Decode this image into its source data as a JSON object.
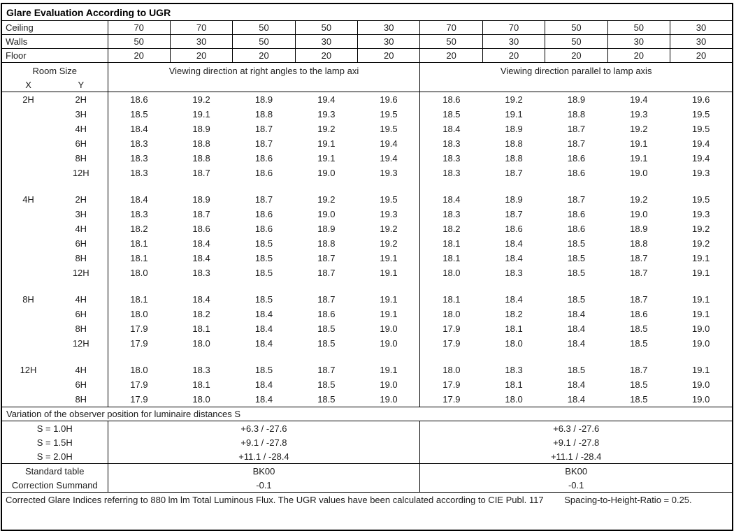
{
  "title": "Glare Evaluation According to UGR",
  "surface_rows": [
    {
      "label": "Ceiling",
      "values": [
        "70",
        "70",
        "50",
        "50",
        "30",
        "70",
        "70",
        "50",
        "50",
        "30"
      ]
    },
    {
      "label": "Walls",
      "values": [
        "50",
        "30",
        "50",
        "30",
        "30",
        "50",
        "30",
        "50",
        "30",
        "30"
      ]
    },
    {
      "label": "Floor",
      "values": [
        "20",
        "20",
        "20",
        "20",
        "20",
        "20",
        "20",
        "20",
        "20",
        "20"
      ]
    }
  ],
  "header": {
    "room_size": "Room Size",
    "x": "X",
    "y": "Y",
    "left_heading": "Viewing direction at right angles to the lamp axi",
    "right_heading": "Viewing direction parallel to lamp axis"
  },
  "data_rows": [
    {
      "x": "2H",
      "y": "2H",
      "left": [
        "18.6",
        "19.2",
        "18.9",
        "19.4",
        "19.6"
      ],
      "right": [
        "18.6",
        "19.2",
        "18.9",
        "19.4",
        "19.6"
      ]
    },
    {
      "x": "",
      "y": "3H",
      "left": [
        "18.5",
        "19.1",
        "18.8",
        "19.3",
        "19.5"
      ],
      "right": [
        "18.5",
        "19.1",
        "18.8",
        "19.3",
        "19.5"
      ]
    },
    {
      "x": "",
      "y": "4H",
      "left": [
        "18.4",
        "18.9",
        "18.7",
        "19.2",
        "19.5"
      ],
      "right": [
        "18.4",
        "18.9",
        "18.7",
        "19.2",
        "19.5"
      ]
    },
    {
      "x": "",
      "y": "6H",
      "left": [
        "18.3",
        "18.8",
        "18.7",
        "19.1",
        "19.4"
      ],
      "right": [
        "18.3",
        "18.8",
        "18.7",
        "19.1",
        "19.4"
      ]
    },
    {
      "x": "",
      "y": "8H",
      "left": [
        "18.3",
        "18.8",
        "18.6",
        "19.1",
        "19.4"
      ],
      "right": [
        "18.3",
        "18.8",
        "18.6",
        "19.1",
        "19.4"
      ]
    },
    {
      "x": "",
      "y": "12H",
      "left": [
        "18.3",
        "18.7",
        "18.6",
        "19.0",
        "19.3"
      ],
      "right": [
        "18.3",
        "18.7",
        "18.6",
        "19.0",
        "19.3"
      ]
    },
    {
      "blank": true
    },
    {
      "x": "4H",
      "y": "2H",
      "left": [
        "18.4",
        "18.9",
        "18.7",
        "19.2",
        "19.5"
      ],
      "right": [
        "18.4",
        "18.9",
        "18.7",
        "19.2",
        "19.5"
      ]
    },
    {
      "x": "",
      "y": "3H",
      "left": [
        "18.3",
        "18.7",
        "18.6",
        "19.0",
        "19.3"
      ],
      "right": [
        "18.3",
        "18.7",
        "18.6",
        "19.0",
        "19.3"
      ]
    },
    {
      "x": "",
      "y": "4H",
      "left": [
        "18.2",
        "18.6",
        "18.6",
        "18.9",
        "19.2"
      ],
      "right": [
        "18.2",
        "18.6",
        "18.6",
        "18.9",
        "19.2"
      ]
    },
    {
      "x": "",
      "y": "6H",
      "left": [
        "18.1",
        "18.4",
        "18.5",
        "18.8",
        "19.2"
      ],
      "right": [
        "18.1",
        "18.4",
        "18.5",
        "18.8",
        "19.2"
      ]
    },
    {
      "x": "",
      "y": "8H",
      "left": [
        "18.1",
        "18.4",
        "18.5",
        "18.7",
        "19.1"
      ],
      "right": [
        "18.1",
        "18.4",
        "18.5",
        "18.7",
        "19.1"
      ]
    },
    {
      "x": "",
      "y": "12H",
      "left": [
        "18.0",
        "18.3",
        "18.5",
        "18.7",
        "19.1"
      ],
      "right": [
        "18.0",
        "18.3",
        "18.5",
        "18.7",
        "19.1"
      ]
    },
    {
      "blank": true
    },
    {
      "x": "8H",
      "y": "4H",
      "left": [
        "18.1",
        "18.4",
        "18.5",
        "18.7",
        "19.1"
      ],
      "right": [
        "18.1",
        "18.4",
        "18.5",
        "18.7",
        "19.1"
      ]
    },
    {
      "x": "",
      "y": "6H",
      "left": [
        "18.0",
        "18.2",
        "18.4",
        "18.6",
        "19.1"
      ],
      "right": [
        "18.0",
        "18.2",
        "18.4",
        "18.6",
        "19.1"
      ]
    },
    {
      "x": "",
      "y": "8H",
      "left": [
        "17.9",
        "18.1",
        "18.4",
        "18.5",
        "19.0"
      ],
      "right": [
        "17.9",
        "18.1",
        "18.4",
        "18.5",
        "19.0"
      ]
    },
    {
      "x": "",
      "y": "12H",
      "left": [
        "17.9",
        "18.0",
        "18.4",
        "18.5",
        "19.0"
      ],
      "right": [
        "17.9",
        "18.0",
        "18.4",
        "18.5",
        "19.0"
      ]
    },
    {
      "blank": true
    },
    {
      "x": "12H",
      "y": "4H",
      "left": [
        "18.0",
        "18.3",
        "18.5",
        "18.7",
        "19.1"
      ],
      "right": [
        "18.0",
        "18.3",
        "18.5",
        "18.7",
        "19.1"
      ]
    },
    {
      "x": "",
      "y": "6H",
      "left": [
        "17.9",
        "18.1",
        "18.4",
        "18.5",
        "19.0"
      ],
      "right": [
        "17.9",
        "18.1",
        "18.4",
        "18.5",
        "19.0"
      ]
    },
    {
      "x": "",
      "y": "8H",
      "left": [
        "17.9",
        "18.0",
        "18.4",
        "18.5",
        "19.0"
      ],
      "right": [
        "17.9",
        "18.0",
        "18.4",
        "18.5",
        "19.0"
      ]
    }
  ],
  "variation_heading": "Variation of the observer position for luminaire distances S",
  "variation_rows": [
    {
      "label": "S = 1.0H",
      "left": "+6.3 / -27.6",
      "right": "+6.3 / -27.6"
    },
    {
      "label": "S = 1.5H",
      "left": "+9.1 / -27.8",
      "right": "+9.1 / -27.8"
    },
    {
      "label": "S = 2.0H",
      "left": "+11.1 / -28.4",
      "right": "+11.1 / -28.4"
    }
  ],
  "summary_rows": [
    {
      "label": "Standard table",
      "left": "BK00",
      "right": "BK00"
    },
    {
      "label": "Correction Summand",
      "left": "-0.1",
      "right": "-0.1"
    }
  ],
  "footer": {
    "note": "Corrected Glare Indices referring to 880 lm lm Total Luminous Flux. The UGR values have been calculated according to CIE Publ. 117",
    "ratio": "Spacing-to-Height-Ratio = 0.25."
  }
}
